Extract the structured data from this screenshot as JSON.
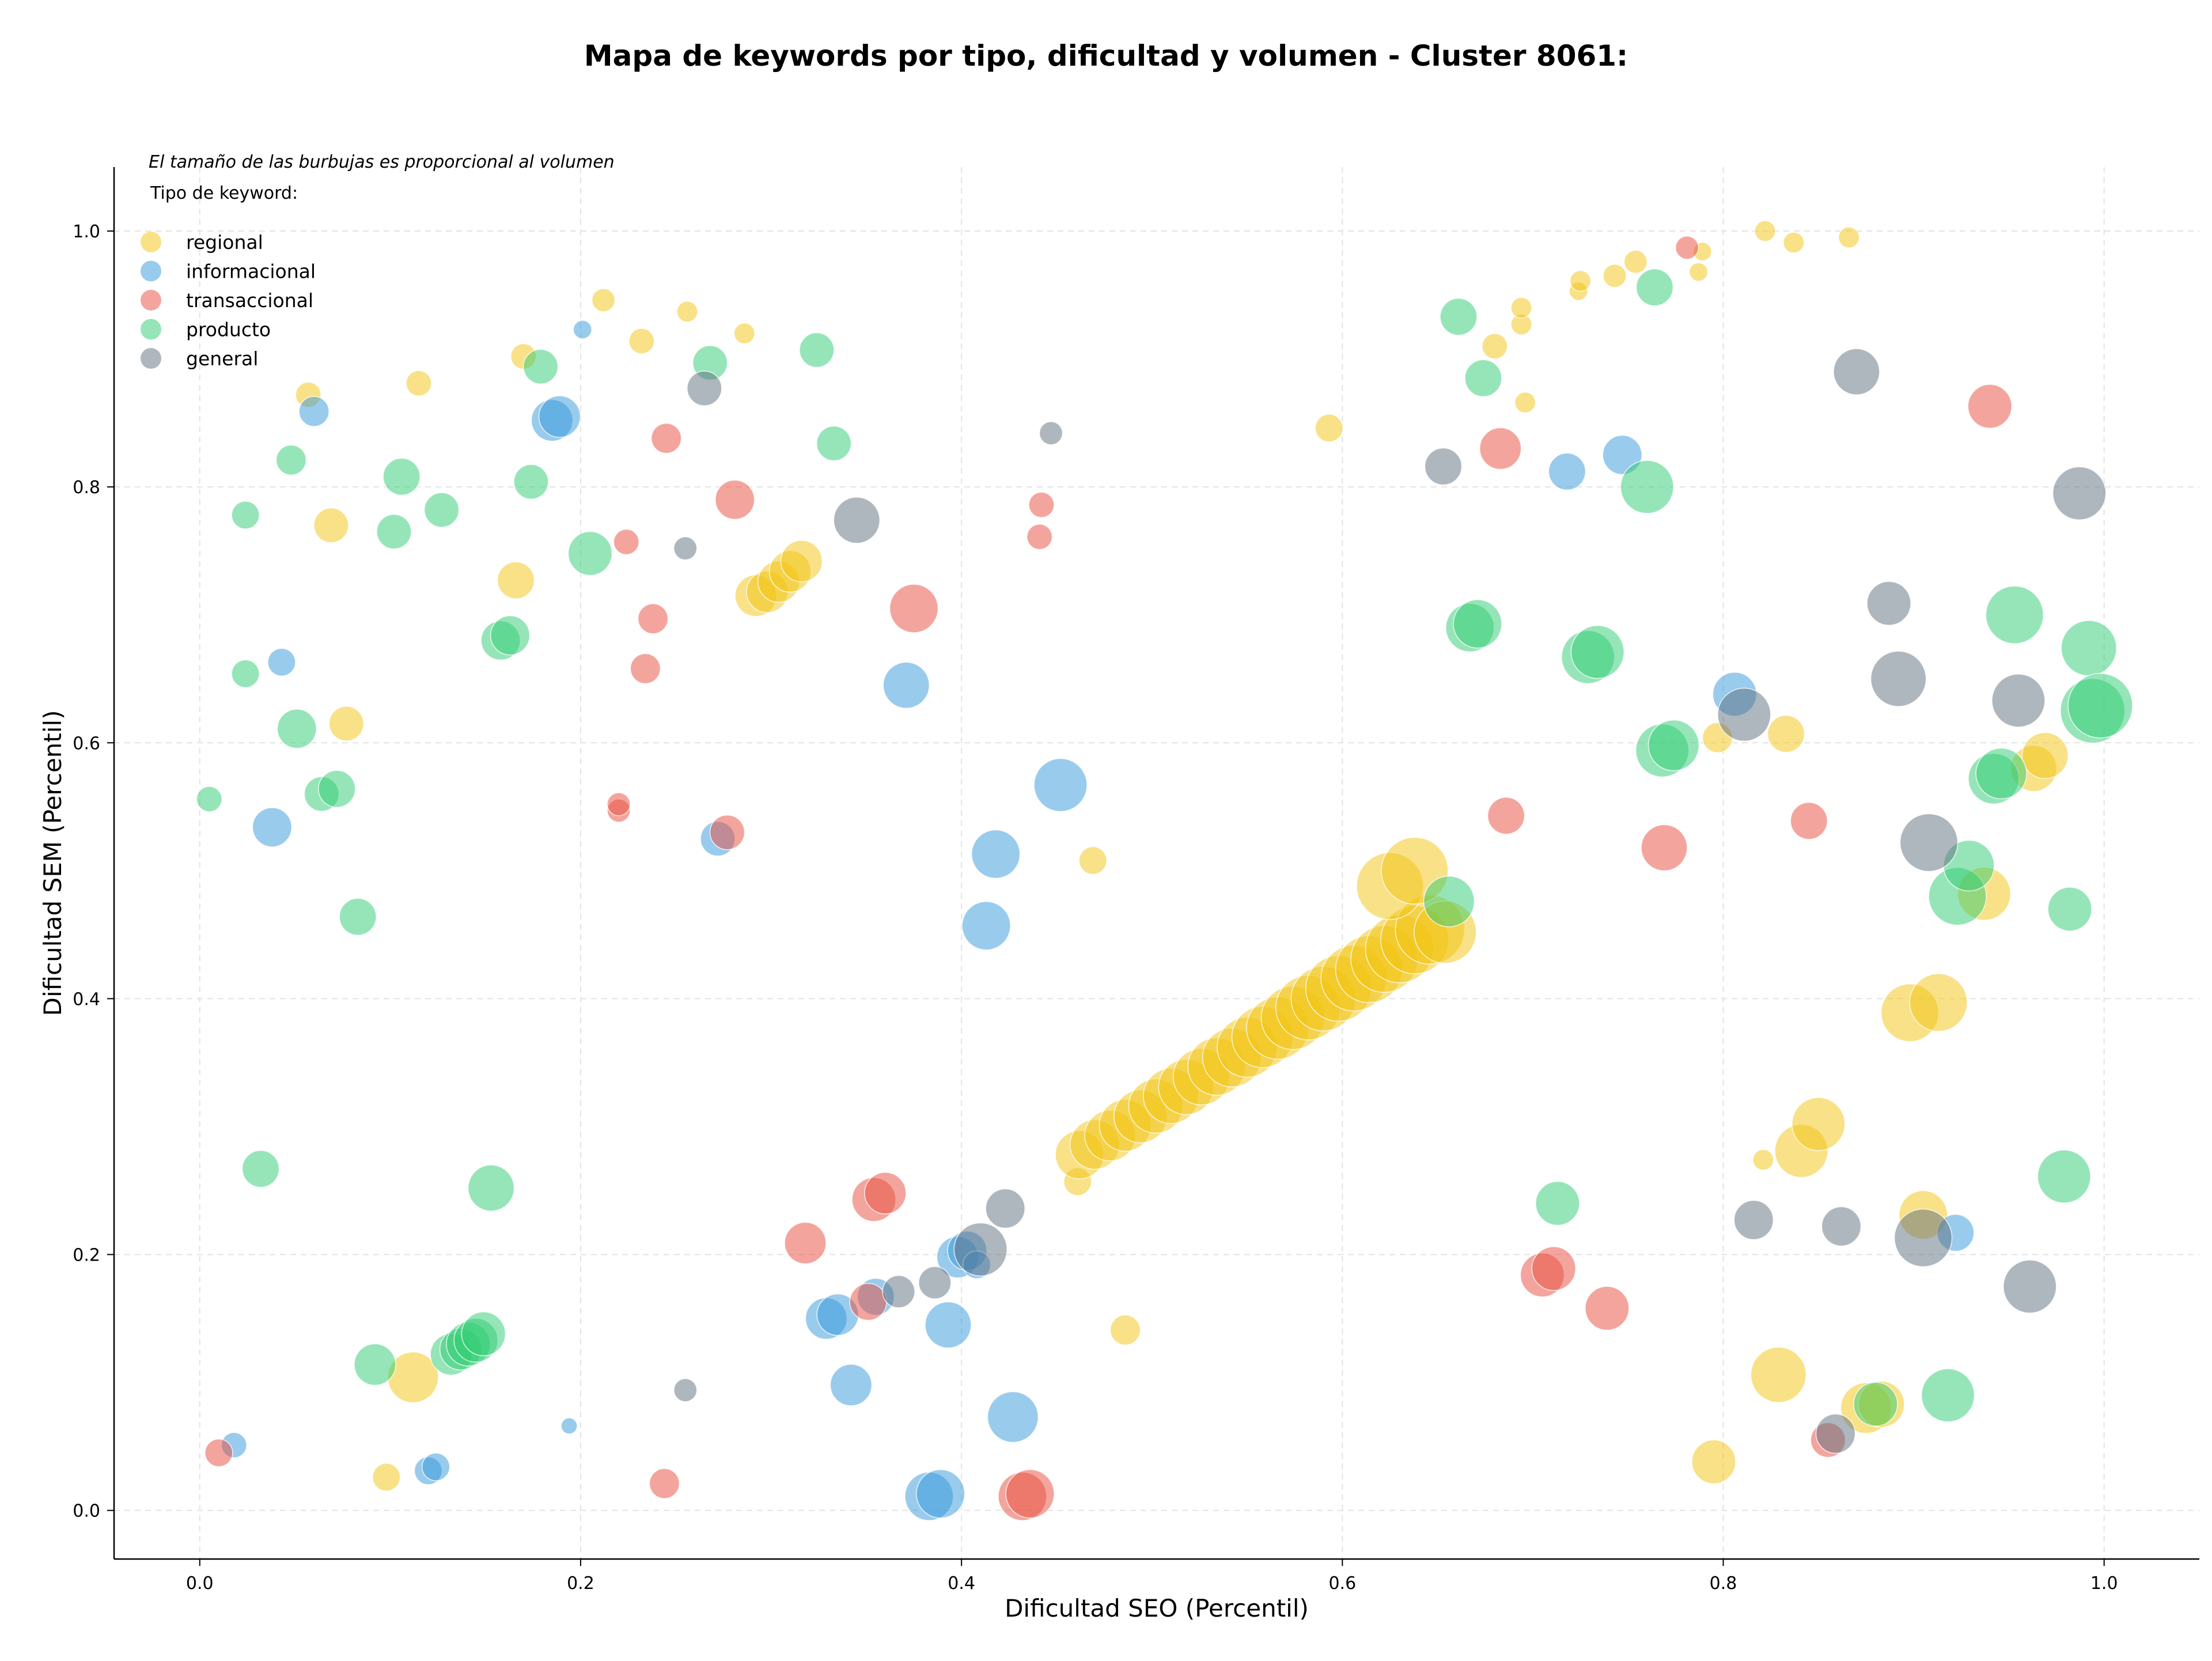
{
  "chart_data": {
    "type": "scatter",
    "title": "Mapa de keywords por tipo, dificultad y volumen - Cluster 8061:",
    "xlabel": "Dificultad SEO (Percentil)",
    "ylabel": "Dificultad SEM (Percentil)",
    "xlim": [
      -0.045,
      1.05
    ],
    "ylim": [
      -0.038,
      1.05
    ],
    "xticks": [
      "0.0",
      "0.2",
      "0.4",
      "0.6",
      "0.8",
      "1.0"
    ],
    "yticks": [
      "0.0",
      "0.2",
      "0.4",
      "0.6",
      "0.8",
      "1.0"
    ],
    "grid": true,
    "legend_position": "upper-left",
    "size_note": "El tamaño de las burbujas es proporcional al volumen",
    "legend_title": "Tipo de keyword:",
    "series": [
      {
        "name": "regional",
        "color": "#f1c40f",
        "points": [
          [
            0.057,
            0.872,
            22
          ],
          [
            0.115,
            0.881,
            22
          ],
          [
            0.17,
            0.902,
            22
          ],
          [
            0.212,
            0.946,
            20
          ],
          [
            0.232,
            0.914,
            22
          ],
          [
            0.256,
            0.937,
            18
          ],
          [
            0.286,
            0.92,
            18
          ],
          [
            0.069,
            0.77,
            30
          ],
          [
            0.166,
            0.727,
            32
          ],
          [
            0.077,
            0.615,
            30
          ],
          [
            0.292,
            0.715,
            36
          ],
          [
            0.298,
            0.718,
            36
          ],
          [
            0.304,
            0.726,
            36
          ],
          [
            0.31,
            0.734,
            36
          ],
          [
            0.316,
            0.742,
            36
          ],
          [
            0.112,
            0.104,
            44
          ],
          [
            0.098,
            0.026,
            24
          ],
          [
            0.469,
            0.508,
            24
          ],
          [
            0.461,
            0.257,
            24
          ],
          [
            0.486,
            0.141,
            26
          ],
          [
            0.593,
            0.846,
            24
          ],
          [
            0.68,
            0.91,
            22
          ],
          [
            0.694,
            0.927,
            18
          ],
          [
            0.694,
            0.94,
            18
          ],
          [
            0.696,
            0.866,
            18
          ],
          [
            0.724,
            0.953,
            16
          ],
          [
            0.725,
            0.961,
            18
          ],
          [
            0.743,
            0.965,
            20
          ],
          [
            0.754,
            0.976,
            20
          ],
          [
            0.787,
            0.968,
            16
          ],
          [
            0.789,
            0.984,
            16
          ],
          [
            0.822,
            1.0,
            18
          ],
          [
            0.837,
            0.991,
            18
          ],
          [
            0.866,
            0.995,
            18
          ],
          [
            0.797,
            0.604,
            26
          ],
          [
            0.833,
            0.607,
            32
          ],
          [
            0.821,
            0.274,
            18
          ],
          [
            0.841,
            0.281,
            46
          ],
          [
            0.85,
            0.302,
            46
          ],
          [
            0.829,
            0.106,
            48
          ],
          [
            0.795,
            0.038,
            38
          ],
          [
            0.875,
            0.08,
            44
          ],
          [
            0.883,
            0.083,
            40
          ],
          [
            0.898,
            0.389,
            50
          ],
          [
            0.913,
            0.397,
            50
          ],
          [
            0.905,
            0.231,
            42
          ],
          [
            0.937,
            0.482,
            46
          ],
          [
            0.963,
            0.58,
            40
          ],
          [
            0.969,
            0.59,
            40
          ],
          [
            0.462,
            0.278,
            42
          ],
          [
            0.47,
            0.286,
            43
          ],
          [
            0.478,
            0.293,
            44
          ],
          [
            0.486,
            0.301,
            45
          ],
          [
            0.494,
            0.308,
            46
          ],
          [
            0.502,
            0.316,
            47
          ],
          [
            0.51,
            0.324,
            48
          ],
          [
            0.518,
            0.331,
            48
          ],
          [
            0.526,
            0.339,
            49
          ],
          [
            0.534,
            0.347,
            50
          ],
          [
            0.542,
            0.354,
            51
          ],
          [
            0.55,
            0.362,
            52
          ],
          [
            0.558,
            0.37,
            53
          ],
          [
            0.566,
            0.377,
            54
          ],
          [
            0.574,
            0.385,
            55
          ],
          [
            0.582,
            0.393,
            56
          ],
          [
            0.59,
            0.4,
            56
          ],
          [
            0.598,
            0.408,
            57
          ],
          [
            0.606,
            0.416,
            57
          ],
          [
            0.614,
            0.423,
            58
          ],
          [
            0.622,
            0.431,
            58
          ],
          [
            0.63,
            0.439,
            59
          ],
          [
            0.638,
            0.446,
            59
          ],
          [
            0.646,
            0.454,
            60
          ],
          [
            0.654,
            0.452,
            54
          ],
          [
            0.625,
            0.488,
            58
          ],
          [
            0.638,
            0.5,
            58
          ]
        ]
      },
      {
        "name": "informacional",
        "color": "#3498db",
        "points": [
          [
            0.201,
            0.923,
            16
          ],
          [
            0.06,
            0.859,
            26
          ],
          [
            0.185,
            0.852,
            36
          ],
          [
            0.189,
            0.855,
            36
          ],
          [
            0.043,
            0.663,
            24
          ],
          [
            0.038,
            0.534,
            34
          ],
          [
            0.272,
            0.525,
            30
          ],
          [
            0.371,
            0.645,
            40
          ],
          [
            0.418,
            0.513,
            42
          ],
          [
            0.413,
            0.457,
            42
          ],
          [
            0.452,
            0.567,
            46
          ],
          [
            0.718,
            0.812,
            32
          ],
          [
            0.747,
            0.825,
            34
          ],
          [
            0.806,
            0.638,
            38
          ],
          [
            0.922,
            0.217,
            32
          ],
          [
            0.018,
            0.051,
            22
          ],
          [
            0.12,
            0.031,
            24
          ],
          [
            0.124,
            0.034,
            24
          ],
          [
            0.194,
            0.066,
            14
          ],
          [
            0.329,
            0.15,
            36
          ],
          [
            0.335,
            0.153,
            36
          ],
          [
            0.342,
            0.098,
            36
          ],
          [
            0.355,
            0.167,
            32
          ],
          [
            0.383,
            0.011,
            42
          ],
          [
            0.389,
            0.013,
            42
          ],
          [
            0.393,
            0.145,
            40
          ],
          [
            0.398,
            0.198,
            36
          ],
          [
            0.403,
            0.203,
            34
          ],
          [
            0.408,
            0.192,
            24
          ],
          [
            0.427,
            0.073,
            44
          ]
        ]
      },
      {
        "name": "transaccional",
        "color": "#e74c3c",
        "points": [
          [
            0.01,
            0.045,
            24
          ],
          [
            0.22,
            0.547,
            20
          ],
          [
            0.22,
            0.552,
            20
          ],
          [
            0.224,
            0.757,
            22
          ],
          [
            0.234,
            0.658,
            26
          ],
          [
            0.238,
            0.697,
            26
          ],
          [
            0.245,
            0.838,
            26
          ],
          [
            0.244,
            0.021,
            26
          ],
          [
            0.277,
            0.53,
            30
          ],
          [
            0.281,
            0.79,
            34
          ],
          [
            0.318,
            0.209,
            36
          ],
          [
            0.351,
            0.163,
            32
          ],
          [
            0.354,
            0.243,
            38
          ],
          [
            0.36,
            0.248,
            36
          ],
          [
            0.375,
            0.705,
            42
          ],
          [
            0.432,
            0.011,
            42
          ],
          [
            0.436,
            0.013,
            42
          ],
          [
            0.442,
            0.786,
            22
          ],
          [
            0.441,
            0.761,
            22
          ],
          [
            0.683,
            0.83,
            36
          ],
          [
            0.686,
            0.543,
            32
          ],
          [
            0.705,
            0.184,
            38
          ],
          [
            0.711,
            0.189,
            38
          ],
          [
            0.739,
            0.158,
            38
          ],
          [
            0.769,
            0.518,
            40
          ],
          [
            0.781,
            0.987,
            20
          ],
          [
            0.845,
            0.539,
            32
          ],
          [
            0.855,
            0.055,
            30
          ],
          [
            0.94,
            0.863,
            38
          ]
        ]
      },
      {
        "name": "producto",
        "color": "#2ecc71",
        "points": [
          [
            0.005,
            0.556,
            22
          ],
          [
            0.024,
            0.778,
            24
          ],
          [
            0.024,
            0.654,
            24
          ],
          [
            0.048,
            0.821,
            26
          ],
          [
            0.051,
            0.611,
            34
          ],
          [
            0.064,
            0.56,
            30
          ],
          [
            0.072,
            0.564,
            32
          ],
          [
            0.083,
            0.464,
            32
          ],
          [
            0.102,
            0.765,
            30
          ],
          [
            0.106,
            0.808,
            32
          ],
          [
            0.127,
            0.782,
            30
          ],
          [
            0.174,
            0.804,
            30
          ],
          [
            0.179,
            0.894,
            30
          ],
          [
            0.158,
            0.68,
            34
          ],
          [
            0.163,
            0.684,
            34
          ],
          [
            0.205,
            0.748,
            38
          ],
          [
            0.268,
            0.897,
            30
          ],
          [
            0.324,
            0.907,
            30
          ],
          [
            0.333,
            0.834,
            30
          ],
          [
            0.032,
            0.267,
            32
          ],
          [
            0.092,
            0.114,
            36
          ],
          [
            0.132,
            0.122,
            36
          ],
          [
            0.137,
            0.126,
            36
          ],
          [
            0.141,
            0.13,
            38
          ],
          [
            0.145,
            0.133,
            38
          ],
          [
            0.149,
            0.138,
            38
          ],
          [
            0.153,
            0.252,
            40
          ],
          [
            0.661,
            0.933,
            32
          ],
          [
            0.674,
            0.885,
            32
          ],
          [
            0.667,
            0.69,
            42
          ],
          [
            0.671,
            0.693,
            42
          ],
          [
            0.729,
            0.667,
            46
          ],
          [
            0.734,
            0.671,
            46
          ],
          [
            0.764,
            0.956,
            32
          ],
          [
            0.76,
            0.8,
            46
          ],
          [
            0.713,
            0.24,
            38
          ],
          [
            0.768,
            0.594,
            46
          ],
          [
            0.774,
            0.598,
            44
          ],
          [
            0.656,
            0.476,
            44
          ],
          [
            0.88,
            0.083,
            38
          ],
          [
            0.918,
            0.09,
            46
          ],
          [
            0.923,
            0.48,
            50
          ],
          [
            0.929,
            0.504,
            44
          ],
          [
            0.942,
            0.572,
            44
          ],
          [
            0.946,
            0.576,
            44
          ],
          [
            0.953,
            0.7,
            50
          ],
          [
            0.982,
            0.47,
            38
          ],
          [
            0.979,
            0.261,
            46
          ],
          [
            0.992,
            0.674,
            48
          ],
          [
            0.994,
            0.625,
            56
          ],
          [
            0.998,
            0.629,
            56
          ]
        ]
      },
      {
        "name": "general",
        "color": "#5d6d7e",
        "points": [
          [
            0.255,
            0.752,
            20
          ],
          [
            0.265,
            0.877,
            30
          ],
          [
            0.345,
            0.774,
            40
          ],
          [
            0.367,
            0.171,
            28
          ],
          [
            0.386,
            0.178,
            28
          ],
          [
            0.41,
            0.204,
            46
          ],
          [
            0.423,
            0.236,
            34
          ],
          [
            0.447,
            0.842,
            20
          ],
          [
            0.255,
            0.094,
            20
          ],
          [
            0.653,
            0.816,
            32
          ],
          [
            0.816,
            0.227,
            34
          ],
          [
            0.811,
            0.622,
            46
          ],
          [
            0.859,
            0.06,
            34
          ],
          [
            0.862,
            0.222,
            34
          ],
          [
            0.87,
            0.89,
            40
          ],
          [
            0.887,
            0.709,
            38
          ],
          [
            0.892,
            0.65,
            48
          ],
          [
            0.905,
            0.213,
            50
          ],
          [
            0.908,
            0.522,
            50
          ],
          [
            0.955,
            0.633,
            46
          ],
          [
            0.961,
            0.175,
            46
          ],
          [
            0.987,
            0.795,
            46
          ]
        ]
      }
    ]
  }
}
